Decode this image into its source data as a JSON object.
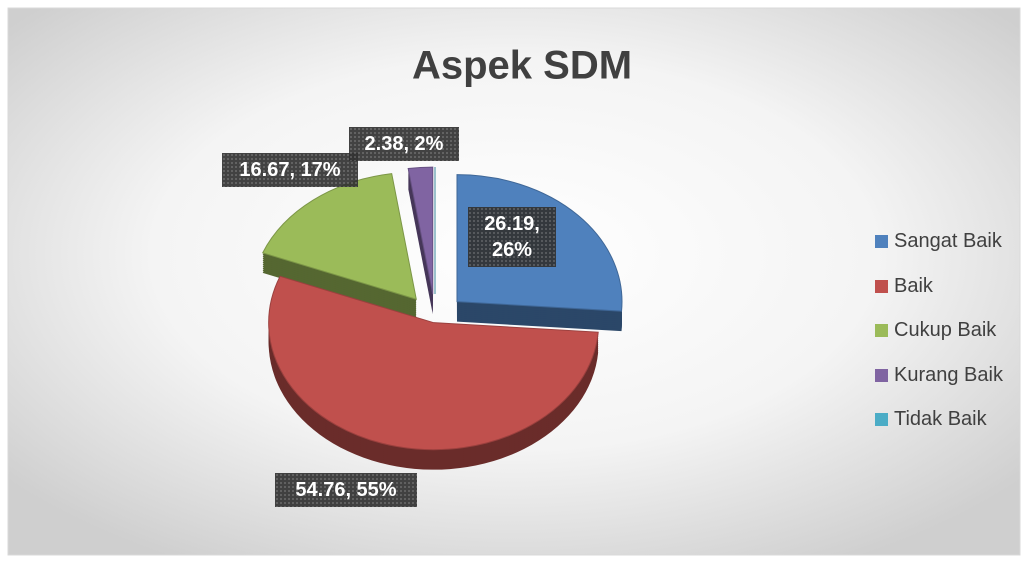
{
  "chart_data": {
    "type": "pie",
    "title": "Aspek SDM",
    "categories": [
      "Sangat Baik",
      "Baik",
      "Cukup Baik",
      "Kurang Baik",
      "Tidak Baik"
    ],
    "values": [
      26.19,
      54.76,
      16.67,
      2.38,
      0
    ],
    "value_labels": [
      "26.19, 26%",
      "54.76, 55%",
      "16.67, 17%",
      "2.38, 2%",
      null
    ],
    "colors": [
      "#4f81bd",
      "#c0504d",
      "#9bbb59",
      "#8064a2",
      "#4bacc6"
    ],
    "legend": "right"
  }
}
